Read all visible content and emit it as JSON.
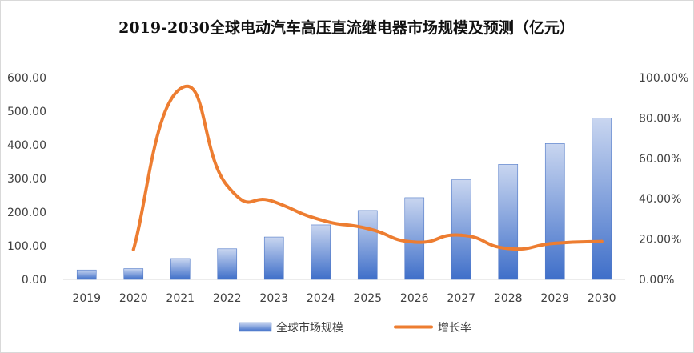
{
  "chart_data": {
    "type": "bar",
    "title": "2019-2030全球电动汽车高压直流继电器市场规模及预测（亿元）",
    "categories": [
      "2019",
      "2020",
      "2021",
      "2022",
      "2023",
      "2024",
      "2025",
      "2026",
      "2027",
      "2028",
      "2029",
      "2030"
    ],
    "y_left_ticks": [
      "0.00",
      "100.00",
      "200.00",
      "300.00",
      "400.00",
      "500.00",
      "600.00"
    ],
    "y_right_ticks": [
      "0.00%",
      "20.00%",
      "40.00%",
      "60.00%",
      "80.00%",
      "100.00%"
    ],
    "ylim_left": [
      0,
      600
    ],
    "ylim_right": [
      0,
      100
    ],
    "series": [
      {
        "name": "全球市场规模",
        "type": "bar",
        "axis": "left",
        "color": "#4472c4",
        "values": [
          28,
          32,
          62,
          91,
          126,
          162,
          205,
          243,
          296,
          342,
          404,
          480
        ]
      },
      {
        "name": "增长率",
        "type": "line",
        "axis": "right",
        "color": "#ed7d31",
        "values": [
          null,
          14.8,
          94.5,
          46.5,
          38.5,
          29.5,
          25.2,
          18.5,
          21.9,
          15.3,
          17.9,
          18.8
        ]
      }
    ],
    "legend_position": "bottom",
    "grid": false
  }
}
